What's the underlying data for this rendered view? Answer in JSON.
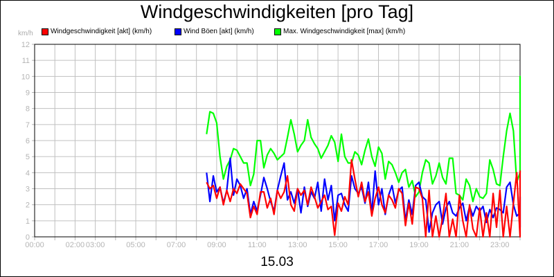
{
  "header": {
    "title": "Windgeschwindigkeiten [pro Tag]",
    "unit_label": "km/h",
    "date_label": "15.03"
  },
  "legend": [
    {
      "label": "Windgeschwindigkeit [akt] (km/h)",
      "color": "#ff0000"
    },
    {
      "label": "Wind Böen [akt] (km/h)",
      "color": "#0000ff"
    },
    {
      "label": "Max. Windgeschwindigkeit [max] (km/h)",
      "color": "#00ff00"
    }
  ],
  "chart_data": {
    "type": "line",
    "title": "Windgeschwindigkeiten [pro Tag]",
    "xlabel": "15.03",
    "ylabel": "km/h",
    "ylim": [
      0,
      12
    ],
    "xlim_hours": [
      0,
      24
    ],
    "grid": true,
    "legend_position": "top",
    "y_ticks": [
      "0",
      "1",
      "2",
      "3",
      "4",
      "5",
      "6",
      "7",
      "8",
      "9",
      "10",
      "11",
      "12"
    ],
    "x_tick_labels": [
      {
        "h": 0,
        "label": "00:00"
      },
      {
        "h": 2,
        "label": "02:00"
      },
      {
        "h": 3,
        "label": "03:00"
      },
      {
        "h": 5,
        "label": "05:00"
      },
      {
        "h": 7,
        "label": "07:00"
      },
      {
        "h": 9,
        "label": "09:00"
      },
      {
        "h": 11,
        "label": "11:00"
      },
      {
        "h": 13,
        "label": "13:00"
      },
      {
        "h": 15,
        "label": "15:00"
      },
      {
        "h": 17,
        "label": "17:00"
      },
      {
        "h": 19,
        "label": "19:00"
      },
      {
        "h": 21,
        "label": "21:00"
      },
      {
        "h": 23,
        "label": "23:00"
      }
    ],
    "x_start_hour": 8.5,
    "x_step_hours": 0.1667,
    "series": [
      {
        "name": "Max. Windgeschwindigkeit [max] (km/h)",
        "color": "#00ff00",
        "values": [
          6.4,
          7.8,
          7.7,
          7.1,
          5.0,
          3.6,
          4.4,
          4.8,
          5.5,
          5.4,
          5.0,
          4.6,
          4.6,
          3.2,
          3.9,
          6.0,
          6.0,
          4.3,
          5.1,
          5.5,
          5.2,
          4.8,
          5.0,
          5.2,
          6.2,
          7.3,
          6.4,
          5.3,
          5.7,
          6.0,
          7.3,
          6.2,
          5.8,
          5.5,
          4.9,
          5.3,
          5.7,
          6.3,
          5.9,
          4.7,
          6.4,
          5.0,
          4.6,
          4.6,
          5.3,
          5.1,
          4.5,
          5.4,
          6.1,
          5.0,
          4.4,
          5.6,
          5.2,
          3.6,
          4.7,
          4.5,
          4.0,
          3.4,
          4.0,
          4.2,
          3.1,
          3.5,
          2.5,
          2.8,
          4.0,
          4.8,
          4.6,
          3.3,
          3.8,
          4.6,
          3.7,
          3.3,
          4.9,
          4.9,
          2.7,
          2.6,
          2.3,
          3.6,
          3.2,
          2.2,
          3.0,
          2.5,
          2.4,
          2.7,
          4.8,
          4.2,
          3.3,
          3.2,
          5.0,
          6.6,
          7.7,
          6.6,
          3.4,
          4.0,
          8.0,
          10.0,
          9.4,
          10.0
        ]
      },
      {
        "name": "Wind Böen [akt] (km/h)",
        "color": "#0000ff",
        "values": [
          4.0,
          2.2,
          3.8,
          2.8,
          3.1,
          2.1,
          2.9,
          4.9,
          2.6,
          3.6,
          3.2,
          2.4,
          3.0,
          1.4,
          2.2,
          1.6,
          2.6,
          3.7,
          3.0,
          2.2,
          1.6,
          2.9,
          3.8,
          4.6,
          2.3,
          2.8,
          2.1,
          3.0,
          1.5,
          3.1,
          1.9,
          2.8,
          2.4,
          3.4,
          1.6,
          3.6,
          2.3,
          3.2,
          1.0,
          2.6,
          2.7,
          2.0,
          1.6,
          3.8,
          3.0,
          2.7,
          3.1,
          2.1,
          3.4,
          1.5,
          4.1,
          2.0,
          3.0,
          1.4,
          2.6,
          3.2,
          2.1,
          2.9,
          3.1,
          1.0,
          2.3,
          1.4,
          3.2,
          3.4,
          2.5,
          2.3,
          0.3,
          1.5,
          2.0,
          2.2,
          0.8,
          1.8,
          2.2,
          1.5,
          1.3,
          1.8,
          2.1,
          1.0,
          1.9,
          1.3,
          1.9,
          1.6,
          1.9,
          0.9,
          1.7,
          1.2,
          1.8,
          1.7,
          1.5,
          3.1,
          3.4,
          2.0,
          1.3,
          1.5,
          0.6,
          1.9,
          2.1,
          2.5
        ]
      },
      {
        "name": "Windgeschwindigkeit [akt] (km/h)",
        "color": "#ff0000",
        "values": [
          3.4,
          3.0,
          3.2,
          2.4,
          3.1,
          2.0,
          2.9,
          2.2,
          3.0,
          2.7,
          3.3,
          3.0,
          2.7,
          1.2,
          1.9,
          1.4,
          2.8,
          2.8,
          1.8,
          2.4,
          1.4,
          2.9,
          2.4,
          2.8,
          3.8,
          2.0,
          1.6,
          3.0,
          2.6,
          2.9,
          2.0,
          3.1,
          2.5,
          1.8,
          2.2,
          2.6,
          1.7,
          1.9,
          0.1,
          2.1,
          1.6,
          2.5,
          2.0,
          4.8,
          3.6,
          2.5,
          3.4,
          2.2,
          2.8,
          1.3,
          2.4,
          3.1,
          2.0,
          1.5,
          2.6,
          2.3,
          1.8,
          3.0,
          2.7,
          0.7,
          2.1,
          0.8,
          3.1,
          3.0,
          2.4,
          0.0,
          2.9,
          0.0,
          1.3,
          0.0,
          1.2,
          2.7,
          0.0,
          1.1,
          0.0,
          2.6,
          1.0,
          0.0,
          2.0,
          0.5,
          0.0,
          1.8,
          0.0,
          1.5,
          0.0,
          2.7,
          0.6,
          2.9,
          0.0,
          1.9,
          0.0,
          2.1,
          4.0,
          0.0,
          1.4,
          0.0,
          1.7,
          2.0,
          0.0,
          4.1,
          1.8
        ]
      }
    ]
  }
}
